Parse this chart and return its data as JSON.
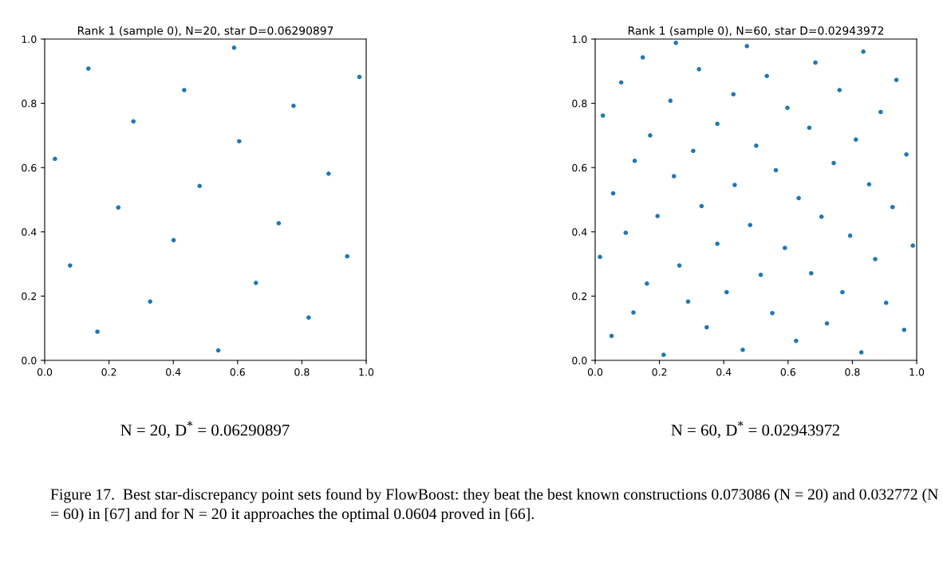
{
  "chart_data": [
    {
      "type": "scatter",
      "title": "Rank 1 (sample 0), N=20, star D=0.06290897",
      "marker": "circle",
      "grid": false,
      "legend": false,
      "xlim": [
        0,
        1
      ],
      "ylim": [
        0,
        1
      ],
      "xticks": [
        {
          "value": 0,
          "label": "0.0"
        },
        {
          "value": 0.2,
          "label": "0.2"
        },
        {
          "value": 0.4,
          "label": "0.4"
        },
        {
          "value": 0.6,
          "label": "0.6"
        },
        {
          "value": 0.8,
          "label": "0.8"
        },
        {
          "value": 1,
          "label": "1.0"
        }
      ],
      "yticks": [
        {
          "value": 0,
          "label": "0.0"
        },
        {
          "value": 0.2,
          "label": "0.2"
        },
        {
          "value": 0.4,
          "label": "0.4"
        },
        {
          "value": 0.6,
          "label": "0.6"
        },
        {
          "value": 0.8,
          "label": "0.8"
        },
        {
          "value": 1,
          "label": "1.0"
        }
      ],
      "series": [
        {
          "color": "#1f77b4",
          "x": [
            0.589,
            0.136,
            0.979,
            0.434,
            0.774,
            0.276,
            0.605,
            0.032,
            0.883,
            0.482,
            0.229,
            0.728,
            0.401,
            0.079,
            0.941,
            0.657,
            0.328,
            0.821,
            0.164,
            0.54
          ],
          "values": [
            0.973,
            0.908,
            0.882,
            0.841,
            0.792,
            0.744,
            0.682,
            0.627,
            0.581,
            0.543,
            0.476,
            0.427,
            0.374,
            0.295,
            0.324,
            0.241,
            0.183,
            0.133,
            0.089,
            0.031
          ]
        }
      ],
      "annotations": [
        "N = 20, D$^{*}$ = 0.06290897"
      ]
    },
    {
      "type": "scatter",
      "title": "Rank 1 (sample 0), N=60, star D=0.02943972",
      "marker": "circle",
      "grid": false,
      "legend": false,
      "xlim": [
        0,
        1
      ],
      "ylim": [
        0,
        1
      ],
      "xticks": [
        {
          "value": 0,
          "label": "0.0"
        },
        {
          "value": 0.2,
          "label": "0.2"
        },
        {
          "value": 0.4,
          "label": "0.4"
        },
        {
          "value": 0.6,
          "label": "0.6"
        },
        {
          "value": 0.8,
          "label": "0.8"
        },
        {
          "value": 1,
          "label": "1.0"
        }
      ],
      "yticks": [
        {
          "value": 0,
          "label": "0.0"
        },
        {
          "value": 0.2,
          "label": "0.2"
        },
        {
          "value": 0.4,
          "label": "0.4"
        },
        {
          "value": 0.6,
          "label": "0.6"
        },
        {
          "value": 0.8,
          "label": "0.8"
        },
        {
          "value": 1,
          "label": "1.0"
        }
      ],
      "series": [
        {
          "color": "#1f77b4",
          "x": [
            0.251,
            0.472,
            0.834,
            0.148,
            0.685,
            0.323,
            0.534,
            0.937,
            0.081,
            0.76,
            0.43,
            0.234,
            0.598,
            0.888,
            0.024,
            0.38,
            0.666,
            0.171,
            0.811,
            0.501,
            0.305,
            0.968,
            0.123,
            0.742,
            0.562,
            0.245,
            0.434,
            0.852,
            0.056,
            0.633,
            0.331,
            0.925,
            0.194,
            0.704,
            0.482,
            0.095,
            0.793,
            0.38,
            0.988,
            0.59,
            0.015,
            0.871,
            0.262,
            0.672,
            0.515,
            0.161,
            0.409,
            0.769,
            0.905,
            0.289,
            0.119,
            0.551,
            0.347,
            0.721,
            0.961,
            0.051,
            0.625,
            0.459,
            0.828,
            0.213
          ],
          "values": [
            0.988,
            0.978,
            0.961,
            0.943,
            0.927,
            0.906,
            0.885,
            0.873,
            0.865,
            0.841,
            0.828,
            0.808,
            0.786,
            0.773,
            0.762,
            0.736,
            0.724,
            0.7,
            0.687,
            0.668,
            0.652,
            0.641,
            0.621,
            0.614,
            0.592,
            0.573,
            0.546,
            0.548,
            0.52,
            0.505,
            0.48,
            0.477,
            0.449,
            0.447,
            0.421,
            0.397,
            0.388,
            0.363,
            0.357,
            0.35,
            0.322,
            0.315,
            0.295,
            0.271,
            0.266,
            0.239,
            0.212,
            0.212,
            0.179,
            0.183,
            0.149,
            0.147,
            0.103,
            0.115,
            0.095,
            0.076,
            0.061,
            0.033,
            0.025,
            0.017
          ]
        }
      ],
      "annotations": [
        "N = 60, D$^{*}$ = 0.02943972",
        "Figure 17.  Best star-discrepancy point sets found by FlowBoost: they beat the best known constructions 0.073086 (N = 20) and 0.032772 (N = 60) in [67] and for N = 20 it approaches the optimal 0.0604 proved in [66]."
      ]
    }
  ]
}
